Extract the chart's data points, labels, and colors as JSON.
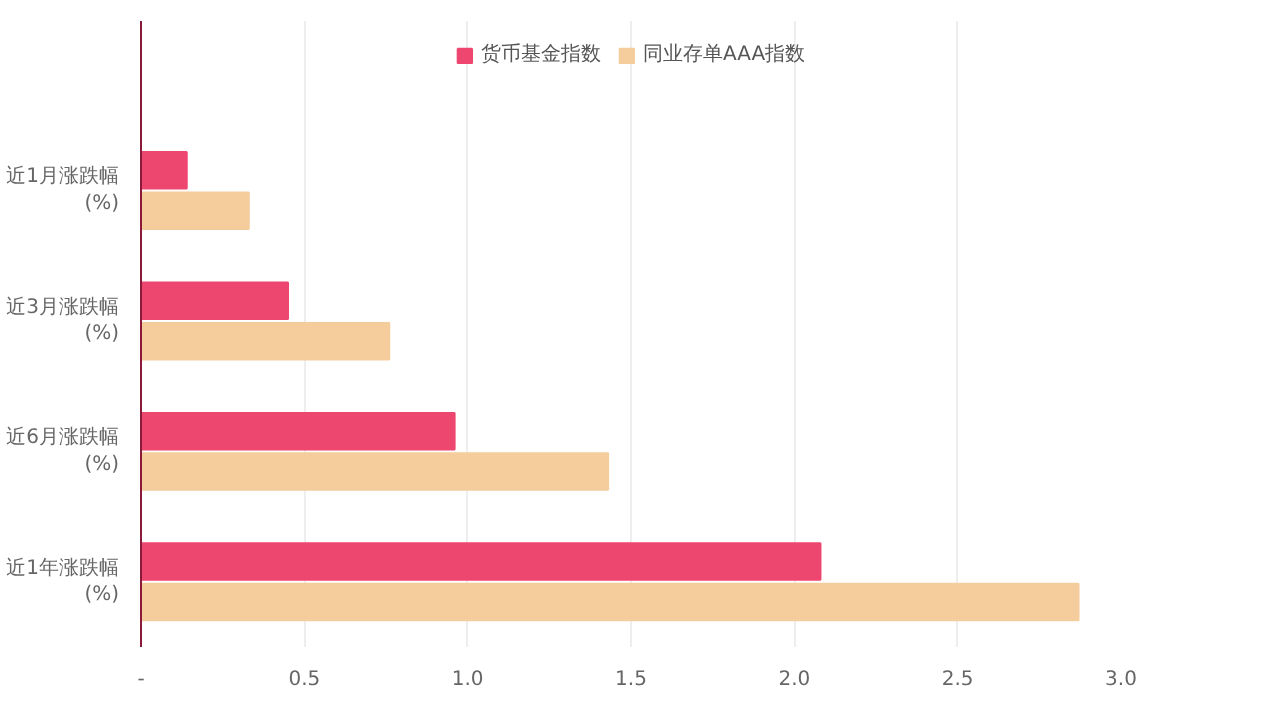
{
  "chart_data": {
    "type": "bar",
    "orientation": "horizontal",
    "categories": [
      "近1月涨跌幅\n(%)",
      "近3月涨跌幅\n(%)",
      "近6月涨跌幅\n(%)",
      "近1年涨跌幅\n(%)"
    ],
    "series": [
      {
        "name": "货币基金指数",
        "color": "#ee476f",
        "values": [
          0.14,
          0.45,
          0.96,
          2.08
        ]
      },
      {
        "name": "同业存单AAA指数",
        "color": "#f5cd9c",
        "values": [
          0.33,
          0.76,
          1.43,
          2.87
        ]
      }
    ],
    "xlim": [
      0,
      3.0
    ],
    "xticks": [
      {
        "value": 0,
        "label": "-"
      },
      {
        "value": 0.5,
        "label": "0.5"
      },
      {
        "value": 1.0,
        "label": "1.0"
      },
      {
        "value": 1.5,
        "label": "1.5"
      },
      {
        "value": 2.0,
        "label": "2.0"
      },
      {
        "value": 2.5,
        "label": "2.5"
      },
      {
        "value": 3.0,
        "label": "3.0"
      }
    ],
    "grid": "x",
    "legend": "top"
  }
}
